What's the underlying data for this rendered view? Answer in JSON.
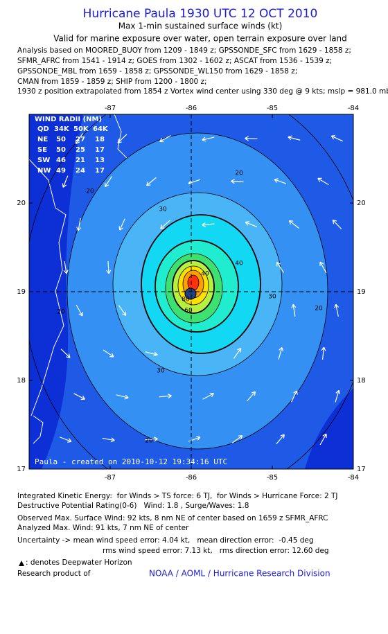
{
  "header": {
    "title": "Hurricane Paula 1930 UTC 12 OCT 2010",
    "subtitle": "Max 1-min sustained surface winds (kt)",
    "validity": "Valid for marine exposure over water, open terrain exposure over land",
    "analysis_lines": [
      "Analysis based on MOORED_BUOY from 1209 - 1849 z; GPSSONDE_SFC from 1629 - 1858 z;",
      "SFMR_AFRC from 1541 - 1914 z; GOES from 1302 - 1602 z; ASCAT from 1536 - 1539 z;",
      "GPSSONDE_MBL from 1659 - 1858 z; GPSSONDE_WL150 from 1629 - 1858 z;",
      "CMAN from 1859 - 1859 z; SHIP from 1200 - 1800 z;",
      "1930 z position extrapolated from 1854 z Vortex wind center using 330 deg @ 9 kts; mslp = 981.0 mb"
    ]
  },
  "map": {
    "xlim": [
      -88,
      -84
    ],
    "ylim": [
      17,
      21
    ],
    "xticks": [
      -87,
      -86,
      -85,
      -84
    ],
    "yticks": [
      17,
      18,
      19,
      20
    ],
    "contour_labels": [
      "20",
      "20",
      "20",
      "20",
      "20",
      "30",
      "30",
      "30",
      "40",
      "40",
      "60",
      "80"
    ],
    "wind_radii": {
      "title": "WIND RADII (NM)",
      "columns": [
        "QD",
        "34K",
        "50K",
        "64K"
      ],
      "rows": [
        [
          "NE",
          50,
          27,
          18
        ],
        [
          "SE",
          50,
          25,
          17
        ],
        [
          "SW",
          46,
          21,
          13
        ],
        [
          "NW",
          49,
          24,
          17
        ]
      ]
    },
    "credit": "Paula - created on 2010-10-12 19:34:16 UTC"
  },
  "footer": {
    "lines": [
      "Integrated Kinetic Energy:  for Winds > TS force: 6 TJ,  for Winds > Hurricane Force: 2 TJ",
      "Destructive Potential Rating(0-6)   Wind: 1.8 , Surge/Waves: 1.8",
      "Observed Max. Surface Wind: 92 kts, 8 nm NE of center based on 1659 z SFMR_AFRC",
      "Analyzed Max. Wind: 91 kts, 7 nm NE of center",
      "Uncertainty -> mean wind speed error: 4.04 kt,   mean direction error:  -0.45 deg",
      "rms wind speed error: 7.13 kt,   rms direction error: 12.60 deg"
    ],
    "legend": ": denotes Deepwater Horizon",
    "research": "Research product of",
    "org": "NOAA / AOML / Hurricane Research Division"
  }
}
